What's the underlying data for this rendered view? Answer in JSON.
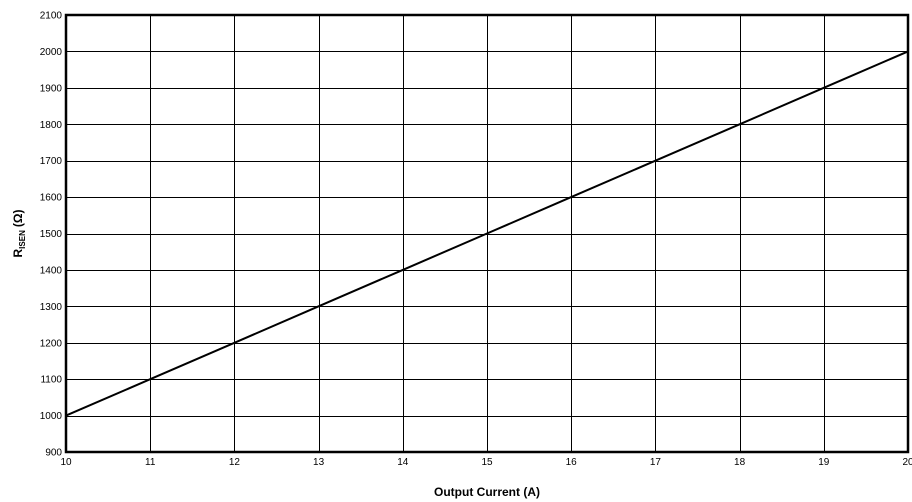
{
  "chart_data": {
    "type": "line",
    "title": "",
    "xlabel": "Output Current (A)",
    "ylabel": {
      "main": "R",
      "sub": "ISEN",
      "unit": "(Ω)"
    },
    "xlim": [
      10,
      20
    ],
    "ylim": [
      900,
      2100
    ],
    "xticks": [
      10,
      11,
      12,
      13,
      14,
      15,
      16,
      17,
      18,
      19,
      20
    ],
    "yticks": [
      900,
      1000,
      1100,
      1200,
      1300,
      1400,
      1500,
      1600,
      1700,
      1800,
      1900,
      2000,
      2100
    ],
    "grid": true,
    "legend": "none",
    "series": [
      {
        "x": [
          10,
          11,
          12,
          13,
          14,
          15,
          16,
          17,
          18,
          19,
          20
        ],
        "y": [
          1000,
          1100,
          1200,
          1300,
          1400,
          1500,
          1600,
          1700,
          1800,
          1900,
          2000
        ]
      }
    ]
  }
}
